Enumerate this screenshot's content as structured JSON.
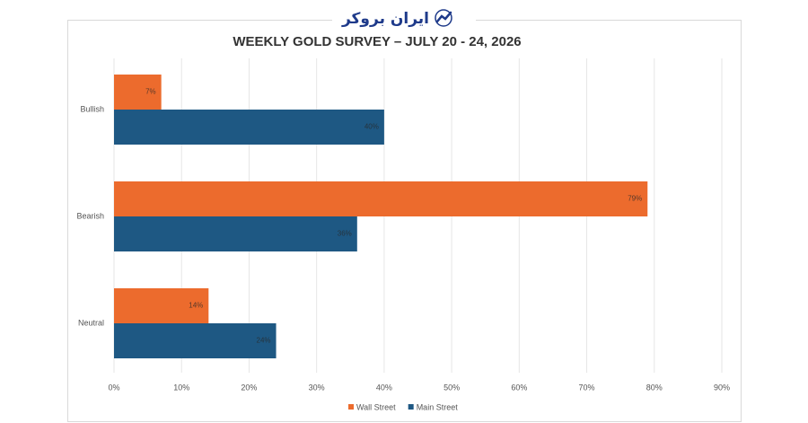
{
  "brand": "ایران بروکر",
  "chart_data": {
    "type": "hbar",
    "title": "WEEKLY GOLD SURVEY – JULY 20 - 24, 2026",
    "categories": [
      "Bullish",
      "Bearish",
      "Neutral"
    ],
    "series": [
      {
        "name": "Wall Street",
        "color": "#ec6b2d",
        "values": [
          7,
          79,
          14
        ],
        "value_labels": [
          "7%",
          "79%",
          "14%"
        ]
      },
      {
        "name": "Main Street",
        "color": "#1e5883",
        "values": [
          40,
          36,
          24
        ],
        "value_labels": [
          "40%",
          "36%",
          "24%"
        ]
      }
    ],
    "xlim": [
      0,
      90
    ],
    "xticks": [
      {
        "value": 0,
        "label": "0%"
      },
      {
        "value": 10,
        "label": "10%"
      },
      {
        "value": 20,
        "label": "20%"
      },
      {
        "value": 30,
        "label": "30%"
      },
      {
        "value": 40,
        "label": "40%"
      },
      {
        "value": 50,
        "label": "50%"
      },
      {
        "value": 60,
        "label": "60%"
      },
      {
        "value": 70,
        "label": "70%"
      },
      {
        "value": 80,
        "label": "80%"
      },
      {
        "value": 90,
        "label": "90%"
      }
    ],
    "grid": true,
    "legend": "bottom"
  }
}
